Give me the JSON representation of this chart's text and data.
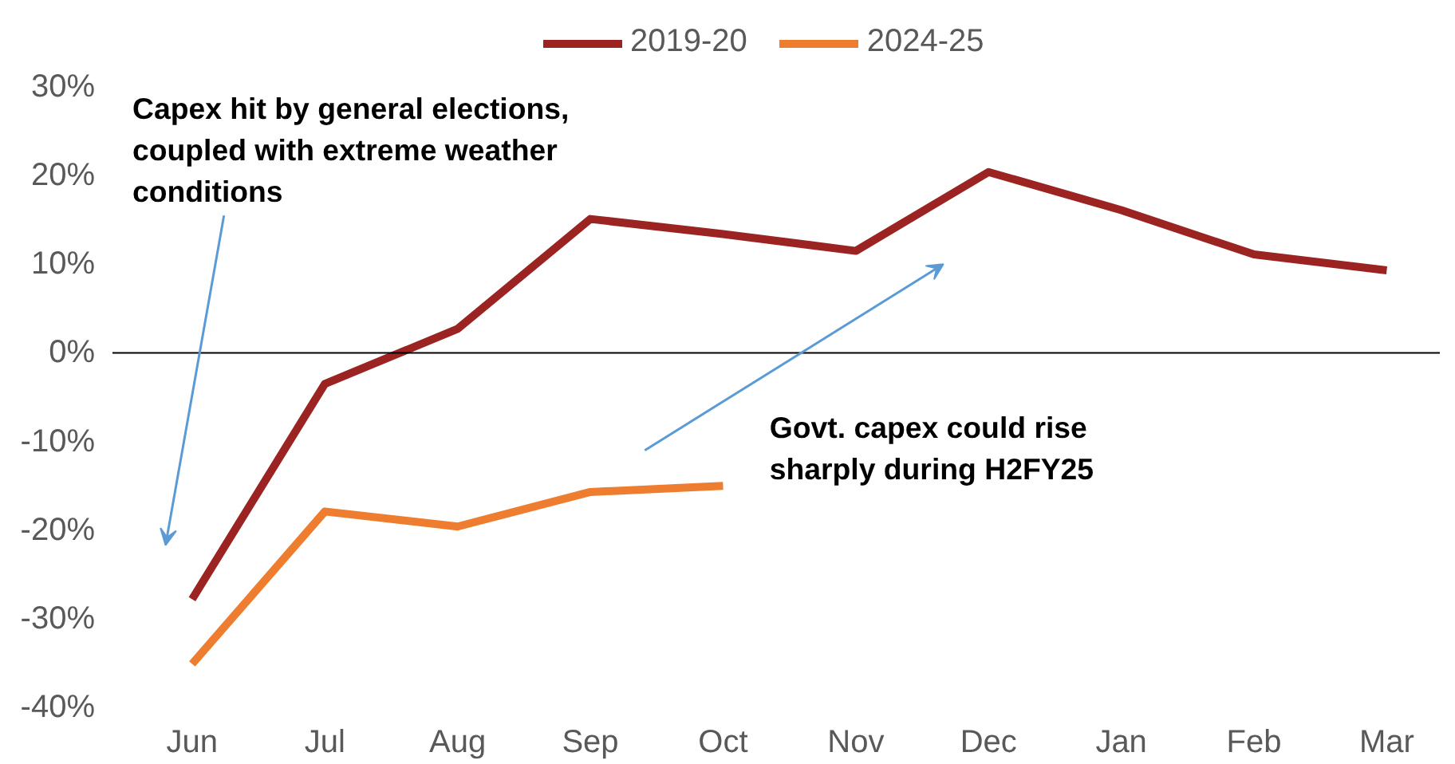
{
  "chart_data": {
    "type": "line",
    "categories": [
      "Jun",
      "Jul",
      "Aug",
      "Sep",
      "Oct",
      "Nov",
      "Dec",
      "Jan",
      "Feb",
      "Mar"
    ],
    "series": [
      {
        "name": "2019-20",
        "color": "#9b2423",
        "values": [
          -27.8,
          -3.5,
          2.7,
          15.1,
          13.4,
          11.5,
          20.4,
          16.1,
          11.1,
          9.3
        ]
      },
      {
        "name": "2024-25",
        "color": "#ef7d2f",
        "values": [
          -35.1,
          -17.9,
          -19.6,
          -15.7,
          -15.0,
          null,
          null,
          null,
          null,
          null
        ]
      }
    ],
    "ylim": [
      -40,
      30
    ],
    "yticks": [
      {
        "value": -40,
        "label": "-40%"
      },
      {
        "value": -30,
        "label": "-30%"
      },
      {
        "value": -20,
        "label": "-20%"
      },
      {
        "value": -10,
        "label": "-10%"
      },
      {
        "value": 0,
        "label": "0%"
      },
      {
        "value": 10,
        "label": "10%"
      },
      {
        "value": 20,
        "label": "20%"
      },
      {
        "value": 30,
        "label": "30%"
      }
    ],
    "ref_lines": [
      {
        "axis": "y",
        "value": 0,
        "color": "#000000"
      }
    ],
    "annotations": [
      "Capex hit by general elections, coupled with extreme weather conditions",
      "Govt. capex could rise sharply during H2FY25"
    ],
    "grid": false,
    "legend": "top",
    "marker": "none",
    "line_style": "solid"
  }
}
